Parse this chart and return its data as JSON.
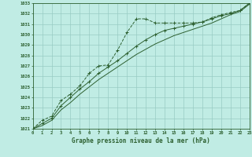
{
  "title": "Graphe pression niveau de la mer (hPa)",
  "bg_color": "#c0ece4",
  "grid_color": "#98ccc4",
  "line_color": "#2d6030",
  "xmin": 0,
  "xmax": 23,
  "ymin": 1021,
  "ymax": 1033,
  "x": [
    0,
    1,
    2,
    3,
    4,
    5,
    6,
    7,
    8,
    9,
    10,
    11,
    12,
    13,
    14,
    15,
    16,
    17,
    18,
    19,
    20,
    21,
    22,
    23
  ],
  "line1": [
    1021.0,
    1021.8,
    1022.2,
    1023.7,
    1024.3,
    1025.1,
    1026.3,
    1027.0,
    1027.1,
    1028.5,
    1030.2,
    1031.5,
    1031.5,
    1031.1,
    1031.1,
    1031.1,
    1031.1,
    1031.1,
    1031.2,
    1031.6,
    1031.9,
    1032.1,
    1032.3,
    1033.0
  ],
  "line2": [
    1021.0,
    1021.5,
    1022.0,
    1023.2,
    1024.0,
    1024.8,
    1025.5,
    1026.3,
    1026.9,
    1027.5,
    1028.2,
    1028.9,
    1029.5,
    1030.0,
    1030.4,
    1030.6,
    1030.8,
    1031.0,
    1031.2,
    1031.5,
    1031.8,
    1032.0,
    1032.3,
    1033.0
  ],
  "line3": [
    1021.0,
    1021.3,
    1021.8,
    1022.8,
    1023.5,
    1024.3,
    1025.0,
    1025.7,
    1026.3,
    1026.9,
    1027.5,
    1028.1,
    1028.6,
    1029.1,
    1029.5,
    1029.9,
    1030.2,
    1030.5,
    1030.8,
    1031.1,
    1031.5,
    1031.9,
    1032.2,
    1032.9
  ]
}
